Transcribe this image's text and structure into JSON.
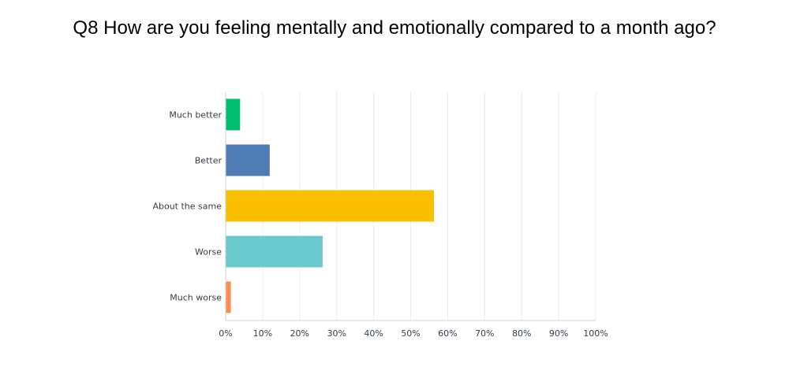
{
  "chart_data": {
    "type": "bar",
    "orientation": "horizontal",
    "title": "Q8 How are you feeling mentally and emotionally compared to a month ago?",
    "categories": [
      "Much better",
      "Better",
      "About the same",
      "Worse",
      "Much worse"
    ],
    "values": [
      3.8,
      11.8,
      56.2,
      26.1,
      1.3
    ],
    "colors": [
      "#00BF6F",
      "#507CB6",
      "#F9BE00",
      "#6BC8CD",
      "#FF8B4F"
    ],
    "xlim": [
      0,
      100
    ],
    "ticks": [
      "0%",
      "10%",
      "20%",
      "30%",
      "40%",
      "50%",
      "60%",
      "70%",
      "80%",
      "90%",
      "100%"
    ],
    "grid": "vertical",
    "legend": "none"
  },
  "colors": {
    "grid": "#ececec",
    "axis": "#d0d0d0",
    "label": "#333e48"
  }
}
